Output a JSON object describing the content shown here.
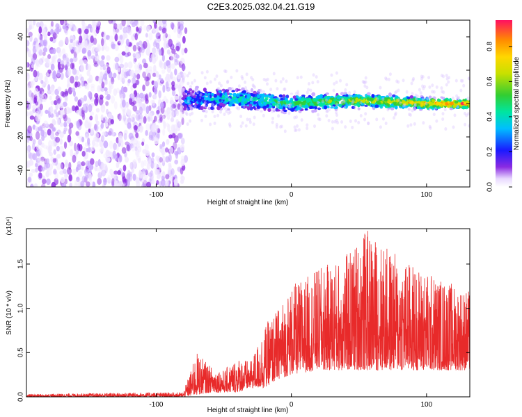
{
  "title": "C2E3.2025.032.04.21.G19",
  "chart_data": [
    {
      "type": "heatmap",
      "xlabel": "Height of straight line (km)",
      "ylabel": "Frequency (Hz)",
      "xlim": [
        -196,
        132
      ],
      "ylim": [
        -50,
        50
      ],
      "xticks": [
        -100,
        0,
        100
      ],
      "yticks": [
        -40,
        -20,
        0,
        20,
        40
      ],
      "colorbar": {
        "label": "Normalized spectral amplitude",
        "range": [
          0,
          0.95
        ],
        "ticks": [
          0.0,
          0.2,
          0.4,
          0.6,
          0.8
        ]
      },
      "description_points": [
        {
          "x": -196,
          "center_freq": 0,
          "note": "noise spread across full band"
        },
        {
          "x": -80,
          "center_freq": 2
        },
        {
          "x": -40,
          "center_freq": 3
        },
        {
          "x": 0,
          "center_freq": 0
        },
        {
          "x": 50,
          "center_freq": 2
        },
        {
          "x": 100,
          "center_freq": 0
        },
        {
          "x": 132,
          "center_freq": 0
        }
      ]
    },
    {
      "type": "line",
      "xlabel": "Height of straight line (km)",
      "ylabel": "SNR (10 * v/v)",
      "scale_label": "(x10⁴)",
      "xlim": [
        -196,
        132
      ],
      "ylim": [
        0,
        1.9
      ],
      "xticks": [
        -100,
        0,
        100
      ],
      "yticks": [
        0.0,
        0.5,
        1.0,
        1.5
      ],
      "color": "#e82a2a",
      "envelope": [
        {
          "x": -196,
          "low": 0.0,
          "high": 0.03
        },
        {
          "x": -110,
          "low": 0.0,
          "high": 0.05
        },
        {
          "x": -80,
          "low": 0.0,
          "high": 0.05
        },
        {
          "x": -70,
          "low": 0.02,
          "high": 0.5
        },
        {
          "x": -60,
          "low": 0.05,
          "high": 0.35
        },
        {
          "x": -50,
          "low": 0.05,
          "high": 0.3
        },
        {
          "x": -40,
          "low": 0.05,
          "high": 0.45
        },
        {
          "x": -30,
          "low": 0.1,
          "high": 0.4
        },
        {
          "x": -20,
          "low": 0.1,
          "high": 0.8
        },
        {
          "x": -10,
          "low": 0.2,
          "high": 1.0
        },
        {
          "x": 0,
          "low": 0.25,
          "high": 1.25
        },
        {
          "x": 20,
          "low": 0.3,
          "high": 1.45
        },
        {
          "x": 40,
          "low": 0.3,
          "high": 1.6
        },
        {
          "x": 55,
          "low": 0.3,
          "high": 1.9
        },
        {
          "x": 70,
          "low": 0.3,
          "high": 1.7
        },
        {
          "x": 90,
          "low": 0.3,
          "high": 1.5
        },
        {
          "x": 110,
          "low": 0.3,
          "high": 1.35
        },
        {
          "x": 132,
          "low": 0.3,
          "high": 1.2
        }
      ]
    }
  ]
}
